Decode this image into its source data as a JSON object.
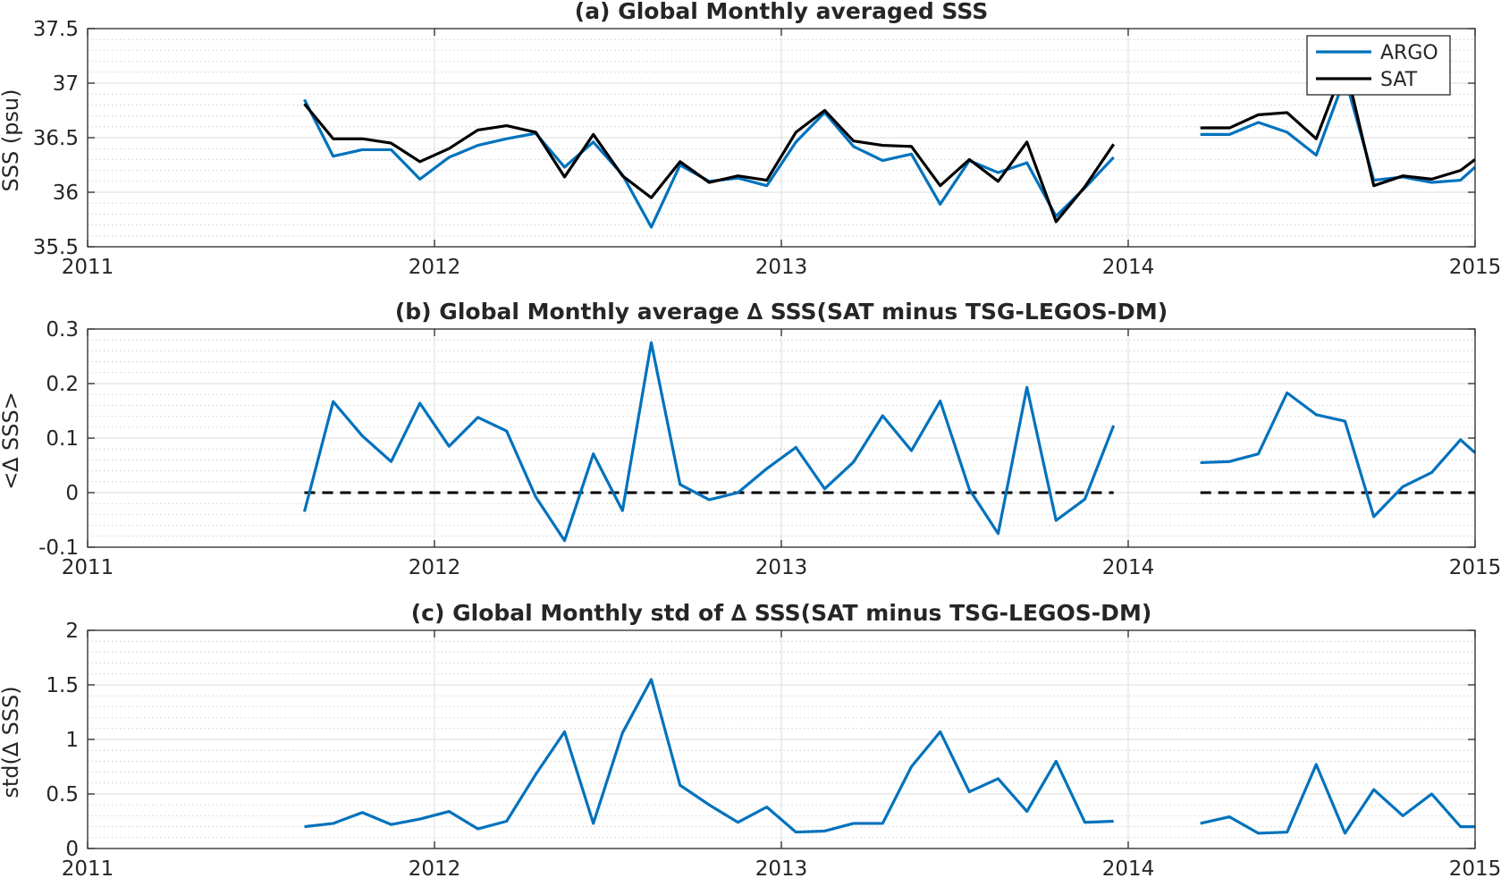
{
  "colors": {
    "argo": "#0072BD",
    "sat": "#000000",
    "zero_line": "#000000",
    "grid_major": "#dcdcdc",
    "grid_minor": "#cfcfcf",
    "axes": "#262626"
  },
  "chart_data": [
    {
      "type": "line",
      "title": "(a) Global Monthly averaged SSS",
      "xlabel": "",
      "ylabel": "SSS (psu)",
      "xlim": [
        2011,
        2015
      ],
      "ylim": [
        35.5,
        37.5
      ],
      "xticks": [
        "2011",
        "2012",
        "2013",
        "2014",
        "2015"
      ],
      "yticks": [
        "35.5",
        "36",
        "36.5",
        "37",
        "37.5"
      ],
      "grid": true,
      "minor_grid": true,
      "legend": {
        "location": "top-right",
        "entries": [
          "ARGO",
          "SAT"
        ]
      },
      "series": [
        {
          "name": "ARGO",
          "color": "#0072BD",
          "x": [
            2011.625,
            2011.708,
            2011.792,
            2011.875,
            2011.958,
            2012.042,
            2012.125,
            2012.208,
            2012.292,
            2012.375,
            2012.458,
            2012.542,
            2012.625,
            2012.708,
            2012.792,
            2012.875,
            2012.958,
            2013.042,
            2013.125,
            2013.208,
            2013.292,
            2013.375,
            2013.458,
            2013.542,
            2013.625,
            2013.708,
            2013.792,
            2013.875,
            2013.958,
            null,
            2014.208,
            2014.292,
            2014.375,
            2014.458,
            2014.542,
            2014.625,
            2014.708,
            2014.792,
            2014.875,
            2014.958,
            2015.0
          ],
          "y": [
            36.85,
            36.33,
            36.39,
            36.39,
            36.12,
            36.32,
            36.43,
            36.49,
            36.54,
            36.23,
            36.46,
            36.16,
            35.68,
            36.25,
            36.1,
            36.13,
            36.06,
            36.46,
            36.73,
            36.42,
            36.29,
            36.35,
            35.89,
            36.29,
            36.18,
            36.27,
            35.78,
            36.04,
            36.32,
            null,
            36.53,
            36.53,
            36.64,
            36.55,
            36.34,
            37.05,
            36.11,
            36.14,
            36.09,
            36.11,
            36.23
          ]
        },
        {
          "name": "SAT",
          "color": "#000000",
          "x": [
            2011.625,
            2011.708,
            2011.792,
            2011.875,
            2011.958,
            2012.042,
            2012.125,
            2012.208,
            2012.292,
            2012.375,
            2012.458,
            2012.542,
            2012.625,
            2012.708,
            2012.792,
            2012.875,
            2012.958,
            2013.042,
            2013.125,
            2013.208,
            2013.292,
            2013.375,
            2013.458,
            2013.542,
            2013.625,
            2013.708,
            2013.792,
            2013.875,
            2013.958,
            null,
            2014.208,
            2014.292,
            2014.375,
            2014.458,
            2014.542,
            2014.625,
            2014.708,
            2014.792,
            2014.875,
            2014.958,
            2015.0
          ],
          "y": [
            36.81,
            36.49,
            36.49,
            36.45,
            36.28,
            36.4,
            36.57,
            36.61,
            36.55,
            36.14,
            36.53,
            36.15,
            35.95,
            36.28,
            36.09,
            36.15,
            36.11,
            36.55,
            36.75,
            36.47,
            36.43,
            36.42,
            36.06,
            36.3,
            36.1,
            36.46,
            35.73,
            36.05,
            36.44,
            null,
            36.59,
            36.59,
            36.71,
            36.73,
            36.49,
            37.18,
            36.06,
            36.15,
            36.12,
            36.2,
            36.3
          ]
        }
      ]
    },
    {
      "type": "line",
      "title": "(b) Global Monthly average ∆ SSS(SAT minus TSG-LEGOS-DM)",
      "xlabel": "",
      "ylabel": "<∆ SSS>",
      "xlim": [
        2011,
        2015
      ],
      "ylim": [
        -0.1,
        0.3
      ],
      "xticks": [
        "2011",
        "2012",
        "2013",
        "2014",
        "2015"
      ],
      "yticks": [
        "-0.1",
        "0",
        "0.1",
        "0.2",
        "0.3"
      ],
      "grid": true,
      "minor_grid": true,
      "reference_line": {
        "y": 0,
        "style": "dashed",
        "segments": [
          [
            2011.625,
            2013.958
          ],
          [
            2014.208,
            2015.0
          ]
        ]
      },
      "series": [
        {
          "color": "#0072BD",
          "x": [
            2011.625,
            2011.708,
            2011.792,
            2011.875,
            2011.958,
            2012.042,
            2012.125,
            2012.208,
            2012.292,
            2012.375,
            2012.458,
            2012.542,
            2012.625,
            2012.708,
            2012.792,
            2012.875,
            2012.958,
            2013.042,
            2013.125,
            2013.208,
            2013.292,
            2013.375,
            2013.458,
            2013.542,
            2013.625,
            2013.708,
            2013.792,
            2013.875,
            2013.958,
            null,
            2014.208,
            2014.292,
            2014.375,
            2014.458,
            2014.542,
            2014.625,
            2014.708,
            2014.792,
            2014.875,
            2014.958,
            2015.0
          ],
          "y": [
            -0.035,
            0.167,
            0.104,
            0.057,
            0.164,
            0.085,
            0.138,
            0.113,
            -0.008,
            -0.088,
            0.071,
            -0.033,
            0.275,
            0.015,
            -0.013,
            0.0,
            0.044,
            0.083,
            0.007,
            0.056,
            0.141,
            0.077,
            0.168,
            0.006,
            -0.075,
            0.193,
            -0.051,
            -0.012,
            0.123,
            null,
            0.055,
            0.057,
            0.071,
            0.183,
            0.143,
            0.131,
            -0.044,
            0.011,
            0.037,
            0.097,
            0.073
          ]
        }
      ]
    },
    {
      "type": "line",
      "title": "(c) Global Monthly std of ∆ SSS(SAT minus TSG-LEGOS-DM)",
      "xlabel": "",
      "ylabel": "std(∆ SSS)",
      "xlim": [
        2011,
        2015
      ],
      "ylim": [
        0,
        2
      ],
      "xticks": [
        "2011",
        "2012",
        "2013",
        "2014",
        "2015"
      ],
      "yticks": [
        "0",
        "0.5",
        "1",
        "1.5",
        "2"
      ],
      "grid": true,
      "minor_grid": true,
      "series": [
        {
          "color": "#0072BD",
          "x": [
            2011.625,
            2011.708,
            2011.792,
            2011.875,
            2011.958,
            2012.042,
            2012.125,
            2012.208,
            2012.292,
            2012.375,
            2012.458,
            2012.542,
            2012.625,
            2012.708,
            2012.792,
            2012.875,
            2012.958,
            2013.042,
            2013.125,
            2013.208,
            2013.292,
            2013.375,
            2013.458,
            2013.542,
            2013.625,
            2013.708,
            2013.792,
            2013.875,
            2013.958,
            null,
            2014.208,
            2014.292,
            2014.375,
            2014.458,
            2014.542,
            2014.625,
            2014.708,
            2014.792,
            2014.875,
            2014.958,
            2015.0
          ],
          "y": [
            0.2,
            0.23,
            0.33,
            0.22,
            0.27,
            0.34,
            0.18,
            0.25,
            0.68,
            1.07,
            0.23,
            1.06,
            1.55,
            0.58,
            0.4,
            0.24,
            0.38,
            0.15,
            0.16,
            0.23,
            0.23,
            0.75,
            1.07,
            0.52,
            0.64,
            0.34,
            0.8,
            0.24,
            0.25,
            null,
            0.23,
            0.29,
            0.14,
            0.15,
            0.77,
            0.14,
            0.54,
            0.3,
            0.5,
            0.2,
            0.2
          ]
        }
      ]
    }
  ]
}
